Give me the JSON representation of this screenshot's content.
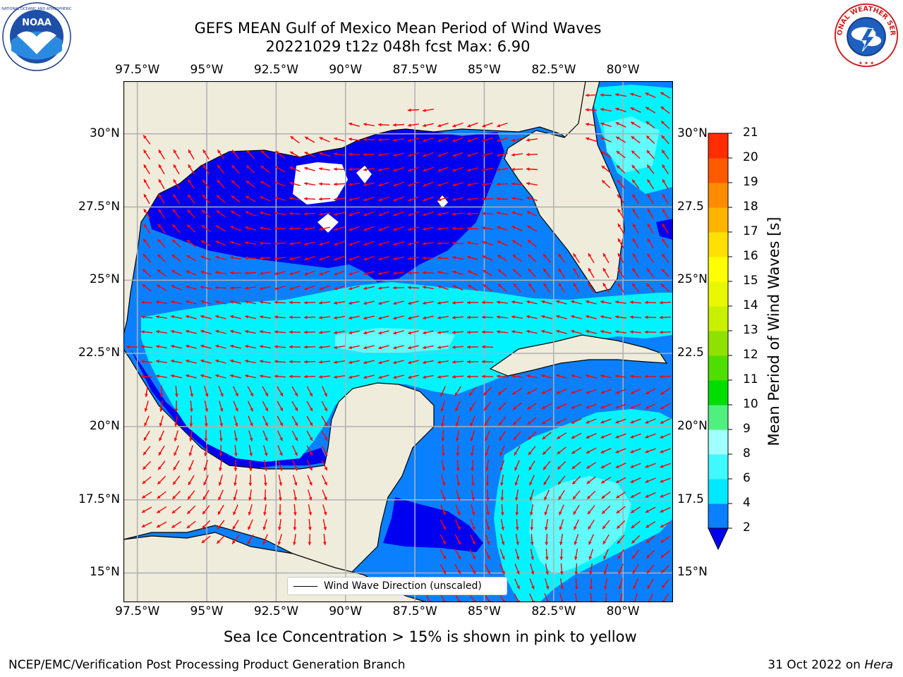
{
  "title": {
    "line1": "GEFS MEAN Gulf of Mexico Mean Period of Wind Waves",
    "line2": "20221029 t12z 048h fcst   Max: 6.90"
  },
  "logos": {
    "left": {
      "name": "noaa-logo",
      "text": "NOAA"
    },
    "right": {
      "name": "nws-logo",
      "text": "NATIONAL WEATHER SERVICE"
    }
  },
  "axes": {
    "lon_labels": [
      "97.5°W",
      "95°W",
      "92.5°W",
      "90°W",
      "87.5°W",
      "85°W",
      "82.5°W",
      "80°W"
    ],
    "lat_labels_left": [
      "30°N",
      "27.5°N",
      "25°N",
      "22.5°N",
      "20°N",
      "17.5°N",
      "15°N"
    ],
    "lat_labels_right": [
      "30°N",
      "27.5",
      "25°N",
      "22.5",
      "20°N",
      "17.5",
      "15°N"
    ],
    "lon_range": [
      -98,
      -78.2
    ],
    "lat_range": [
      14,
      31.8
    ],
    "grid": true
  },
  "colorbar": {
    "label": "Mean Period of Wind Waves [s]",
    "ticks": [
      "2",
      "4",
      "6",
      "8",
      "9",
      "10",
      "11",
      "12",
      "13",
      "14",
      "15",
      "16",
      "17",
      "18",
      "19",
      "20",
      "21"
    ],
    "colors": [
      "#0a80ff",
      "#00e8ff",
      "#40f8ff",
      "#a0ffff",
      "#50f080",
      "#00dd00",
      "#50dd00",
      "#90e000",
      "#c8f000",
      "#e8f800",
      "#ffff00",
      "#ffe000",
      "#ffb400",
      "#ff8c00",
      "#ff5a00",
      "#ff2d00"
    ],
    "extend_color": "#0000f0"
  },
  "legend": {
    "label": "Wind Wave Direction (unscaled)"
  },
  "caption": "Sea Ice Concentration > 15% is shown in pink to yellow",
  "footer": {
    "left": "NCEP/EMC/Verification Post Processing Product Generation Branch",
    "right_prefix": "31 Oct 2022 on ",
    "right_machine": "Hera"
  },
  "map_colors": {
    "land": "#efecdc",
    "below_2": "#0000f0",
    "range_2_4": "#0a80ff",
    "range_4_6": "#00f4ff",
    "range_6_8": "#60fcff",
    "arrows": "#ff0000",
    "grid": "#b0b0b0"
  }
}
